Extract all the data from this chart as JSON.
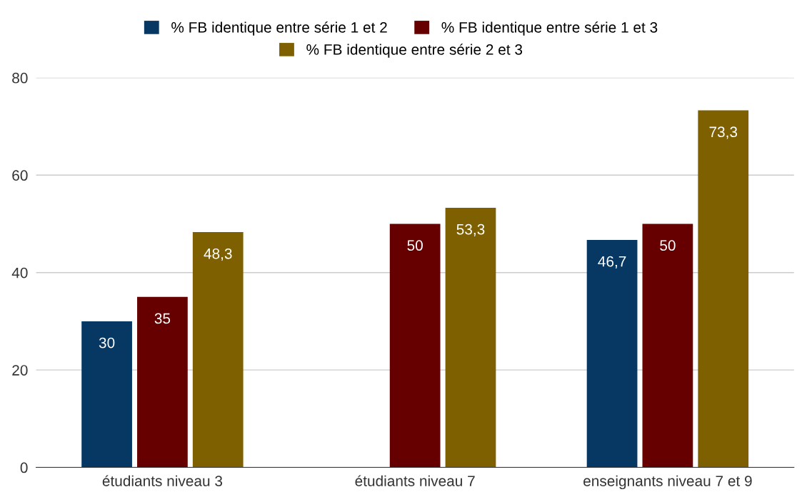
{
  "chart_data": {
    "type": "bar",
    "categories": [
      "étudiants niveau 3",
      "étudiants niveau 7",
      "enseignants niveau 7 et 9"
    ],
    "series": [
      {
        "name": "% FB identique entre série 1 et 2",
        "color": "#073763",
        "values": [
          30,
          null,
          46.7
        ],
        "value_labels": [
          "30",
          null,
          "46,7"
        ]
      },
      {
        "name": "% FB identique entre série 1 et 3",
        "color": "#660000",
        "values": [
          35,
          50,
          50
        ],
        "value_labels": [
          "35",
          "50",
          "50"
        ]
      },
      {
        "name": "% FB identique entre série 2 et 3",
        "color": "#7f6000",
        "values": [
          48.3,
          53.3,
          73.3
        ],
        "value_labels": [
          "48,3",
          "53,3",
          "73,3"
        ]
      }
    ],
    "ylim": [
      0,
      80
    ],
    "yticks": [
      0,
      20,
      40,
      60,
      80
    ],
    "grid": "y",
    "legend": "top"
  }
}
